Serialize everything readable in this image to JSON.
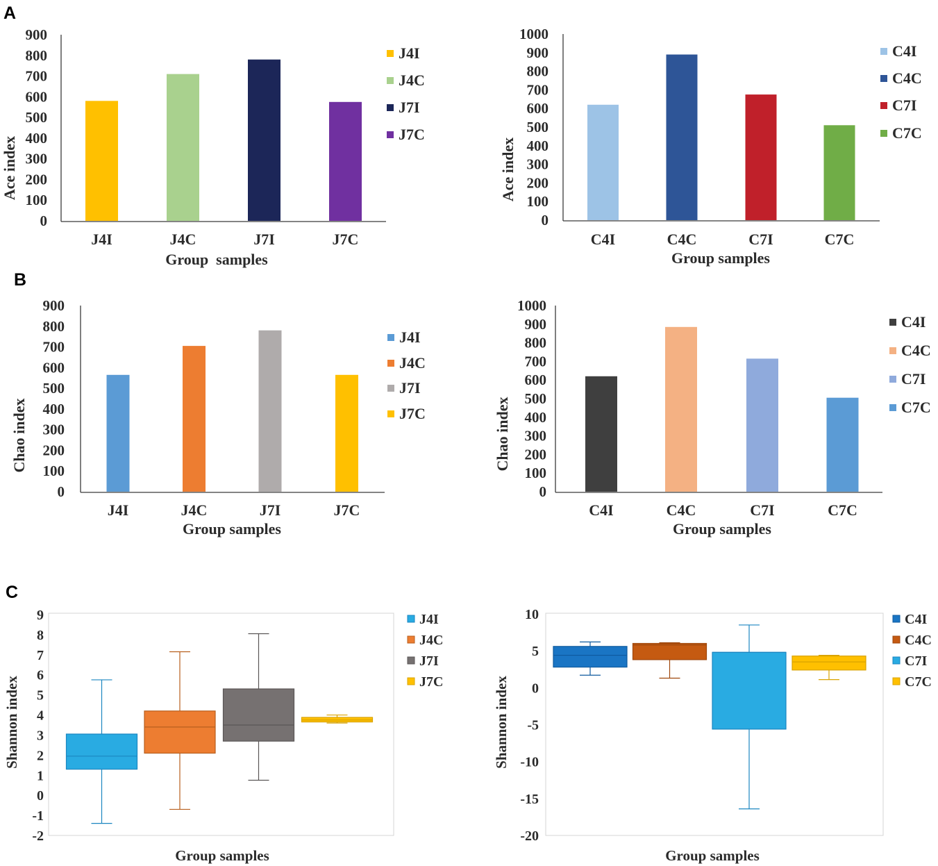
{
  "panel_labels": {
    "a": "A",
    "b": "B",
    "c": "C"
  },
  "chart_data": [
    {
      "type": "bar",
      "categories": [
        "J4I",
        "J4C",
        "J7I",
        "J7C"
      ],
      "values": [
        580,
        710,
        780,
        575
      ],
      "colors": [
        "#FFC000",
        "#A9D18E",
        "#1C2658",
        "#7030A0"
      ],
      "xlabel": "Group  samples",
      "ylabel": "Ace index",
      "ylim": [
        0,
        900
      ],
      "yticks": [
        0,
        100,
        200,
        300,
        400,
        500,
        600,
        700,
        800,
        900
      ],
      "grid": false,
      "legend_position": "right",
      "legend": {
        "entries": [
          "J4I",
          "J4C",
          "J7I",
          "J7C"
        ]
      }
    },
    {
      "type": "bar",
      "categories": [
        "C4I",
        "C4C",
        "C7I",
        "C7C"
      ],
      "values": [
        620,
        890,
        675,
        510
      ],
      "colors": [
        "#9DC3E6",
        "#2E5597",
        "#C0202A",
        "#70AD47"
      ],
      "xlabel": "Group samples",
      "ylabel": "Ace index",
      "ylim": [
        0,
        1000
      ],
      "yticks": [
        0,
        100,
        200,
        300,
        400,
        500,
        600,
        700,
        800,
        900,
        1000
      ],
      "grid": false,
      "legend_position": "right",
      "legend": {
        "entries": [
          "C4I",
          "C4C",
          "C7I",
          "C7C"
        ]
      }
    },
    {
      "type": "bar",
      "categories": [
        "J4I",
        "J4C",
        "J7I",
        "J7C"
      ],
      "values": [
        565,
        705,
        780,
        565
      ],
      "colors": [
        "#5B9BD5",
        "#ED7D31",
        "#AFABAB",
        "#FFC000"
      ],
      "xlabel": "Group samples",
      "ylabel": "Chao index",
      "ylim": [
        0,
        900
      ],
      "yticks": [
        0,
        100,
        200,
        300,
        400,
        500,
        600,
        700,
        800,
        900
      ],
      "grid": false,
      "legend_position": "right",
      "legend": {
        "entries": [
          "J4I",
          "J4C",
          "J7I",
          "J7C"
        ]
      }
    },
    {
      "type": "bar",
      "categories": [
        "C4I",
        "C4C",
        "C7I",
        "C7C"
      ],
      "values": [
        620,
        885,
        715,
        505
      ],
      "colors": [
        "#3F3F3F",
        "#F4B183",
        "#8FAADC",
        "#5B9BD5"
      ],
      "xlabel": "Group samples",
      "ylabel": "Chao index",
      "ylim": [
        0,
        1000
      ],
      "yticks": [
        0,
        100,
        200,
        300,
        400,
        500,
        600,
        700,
        800,
        900,
        1000
      ],
      "grid": false,
      "legend_position": "right",
      "legend": {
        "entries": [
          "C4I",
          "C4C",
          "C7I",
          "C7C"
        ]
      }
    },
    {
      "type": "box",
      "series": [
        {
          "name": "J4I",
          "min": -1.4,
          "q1": 1.3,
          "median": 1.95,
          "q3": 3.05,
          "max": 5.75
        },
        {
          "name": "J4C",
          "min": -0.7,
          "q1": 2.1,
          "median": 3.4,
          "q3": 4.2,
          "max": 7.15
        },
        {
          "name": "J7I",
          "min": 0.75,
          "q1": 2.7,
          "median": 3.5,
          "q3": 5.3,
          "max": 8.05
        },
        {
          "name": "J7C",
          "min": 3.6,
          "q1": 3.65,
          "median": 3.75,
          "q3": 3.88,
          "max": 4.0
        }
      ],
      "colors": [
        "#29ABE2",
        "#ED7D31",
        "#767171",
        "#FFC000"
      ],
      "edge_colors": [
        "#1B86C0",
        "#B85F1E",
        "#5A5656",
        "#D9A300"
      ],
      "xlabel": "Group samples",
      "ylabel": "Shannon index",
      "ylim": [
        -2,
        9
      ],
      "yticks": [
        -2,
        -1,
        0,
        1,
        2,
        3,
        4,
        5,
        6,
        7,
        8,
        9
      ],
      "grid": false,
      "legend_position": "right"
    },
    {
      "type": "box",
      "series": [
        {
          "name": "C4I",
          "min": 1.7,
          "q1": 2.8,
          "median": 4.4,
          "q3": 5.6,
          "max": 6.2
        },
        {
          "name": "C4C",
          "min": 1.3,
          "q1": 3.8,
          "median": 5.8,
          "q3": 6.0,
          "max": 6.1
        },
        {
          "name": "C7I",
          "min": -16.4,
          "q1": -5.6,
          "median": 4.8,
          "q3": 4.8,
          "max": 8.5
        },
        {
          "name": "C7C",
          "min": 1.1,
          "q1": 2.4,
          "median": 3.5,
          "q3": 4.3,
          "max": 4.4
        }
      ],
      "colors": [
        "#1A75C4",
        "#C55A11",
        "#29ABE2",
        "#FFC000"
      ],
      "edge_colors": [
        "#0E5A9E",
        "#9E470C",
        "#1B86C0",
        "#D9A300"
      ],
      "xlabel": "Group samples",
      "ylabel": "Shannon index",
      "ylim": [
        -20,
        10
      ],
      "yticks": [
        -20,
        -15,
        -10,
        -5,
        0,
        5,
        10
      ],
      "grid": false,
      "legend_position": "right"
    }
  ]
}
